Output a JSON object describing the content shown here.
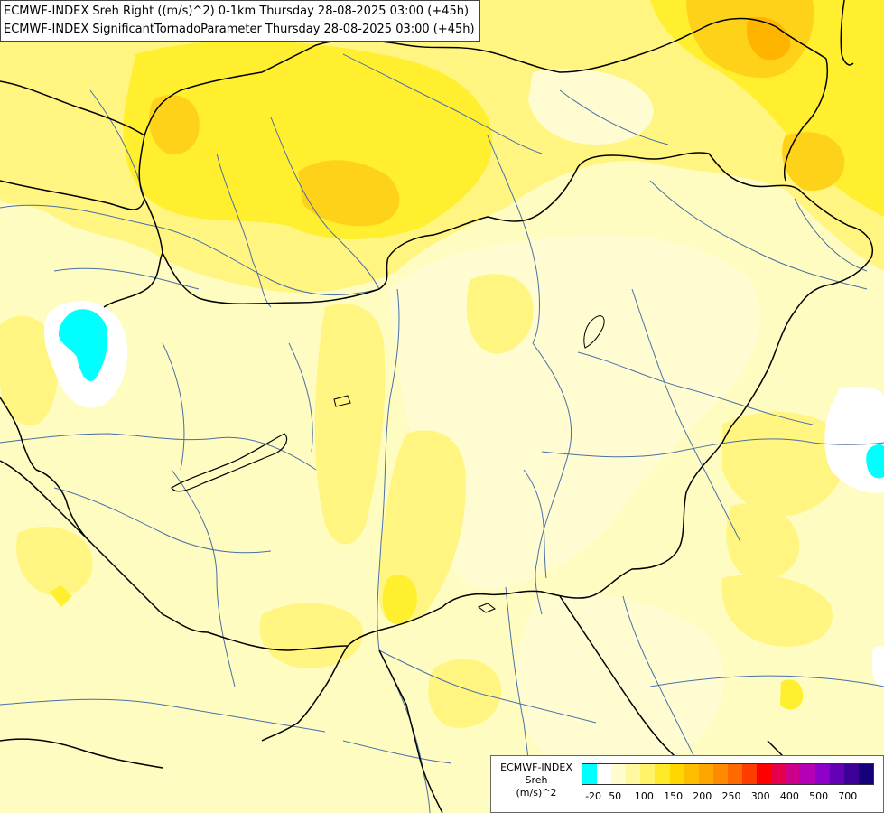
{
  "title": {
    "line1": "ECMWF-INDEX Sreh Right ((m/s)^2) 0-1km Thursday 28-08-2025 03:00 (+45h)",
    "line2": "ECMWF-INDEX SignificantTornadoParameter Thursday 28-08-2025 03:00 (+45h)"
  },
  "legend": {
    "title_line1": "ECMWF-INDEX",
    "title_line2": "Sreh",
    "title_line3": "(m/s)^2",
    "colors": [
      "#00ffff",
      "#ffffff",
      "#fffccd",
      "#fff8a0",
      "#fff36a",
      "#ffea2a",
      "#ffd600",
      "#ffbd00",
      "#ffa500",
      "#ff8a00",
      "#ff6a00",
      "#ff3c00",
      "#ff0000",
      "#e6004c",
      "#cc0088",
      "#b400b4",
      "#8c00c8",
      "#6400b4",
      "#3c0096",
      "#140078"
    ],
    "labels": [
      "-20",
      "50",
      "100",
      "150",
      "200",
      "250",
      "300",
      "400",
      "500",
      "700"
    ]
  },
  "map": {
    "field_colors": {
      "base": "#fefcc0",
      "light": "#fffcd2",
      "mid": "#fff580",
      "strong": "#ffef2e",
      "orange": "#ffd21a",
      "deep_orange": "#ffb400",
      "white": "#ffffff",
      "cyan": "#00ffff"
    },
    "border_color": "#000000",
    "river_color": "#4a6fa8"
  }
}
